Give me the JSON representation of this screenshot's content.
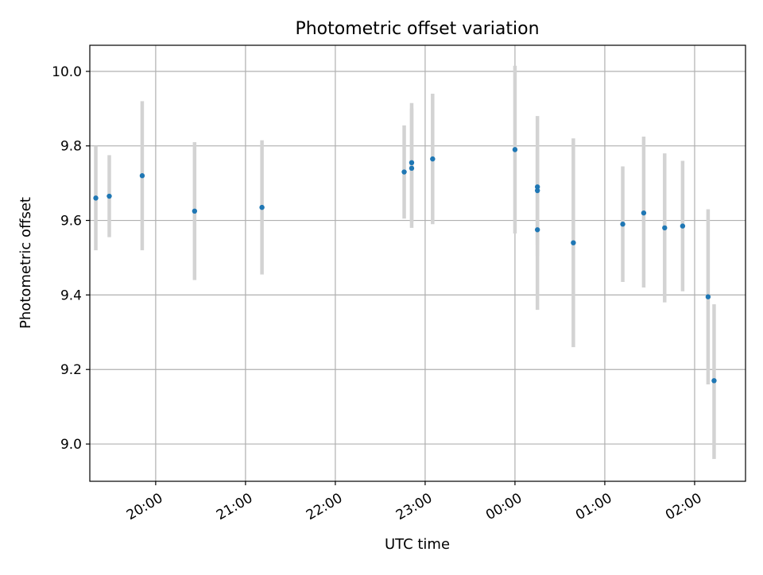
{
  "chart_data": {
    "type": "scatter",
    "title": "Photometric offset variation",
    "xlabel": "UTC time",
    "ylabel": "Photometric offset",
    "x_tick_labels": [
      "20:00",
      "21:00",
      "22:00",
      "23:00",
      "00:00",
      "01:00",
      "02:00"
    ],
    "x_tick_times": [
      "20:00",
      "21:00",
      "22:00",
      "23:00",
      "00:00",
      "01:00",
      "02:00"
    ],
    "y_tick_labels": [
      "9.0",
      "9.2",
      "9.4",
      "9.6",
      "9.8",
      "10.0"
    ],
    "y_tick_values": [
      9.0,
      9.2,
      9.4,
      9.6,
      9.8,
      10.0
    ],
    "xlim": [
      "19:16",
      "02:34"
    ],
    "ylim": [
      8.9,
      10.07
    ],
    "grid": true,
    "series": [
      {
        "marker_color": "#1f77b4",
        "errorbar_color": "#d3d3d3",
        "points": [
          {
            "time": "19:20",
            "y": 9.66,
            "ylow": 9.52,
            "yhigh": 9.8
          },
          {
            "time": "19:29",
            "y": 9.665,
            "ylow": 9.555,
            "yhigh": 9.775
          },
          {
            "time": "19:51",
            "y": 9.72,
            "ylow": 9.52,
            "yhigh": 9.92
          },
          {
            "time": "20:26",
            "y": 9.625,
            "ylow": 9.44,
            "yhigh": 9.81
          },
          {
            "time": "21:11",
            "y": 9.635,
            "ylow": 9.455,
            "yhigh": 9.815
          },
          {
            "time": "22:46",
            "y": 9.73,
            "ylow": 9.605,
            "yhigh": 9.855
          },
          {
            "time": "22:51",
            "y": 9.74,
            "ylow": 9.58,
            "yhigh": 9.9
          },
          {
            "time": "22:51",
            "y": 9.755,
            "ylow": 9.595,
            "yhigh": 9.915
          },
          {
            "time": "23:05",
            "y": 9.765,
            "ylow": 9.59,
            "yhigh": 9.94
          },
          {
            "time": "00:00",
            "y": 9.79,
            "ylow": 9.565,
            "yhigh": 10.015
          },
          {
            "time": "00:15",
            "y": 9.69,
            "ylow": 9.505,
            "yhigh": 9.88
          },
          {
            "time": "00:15",
            "y": 9.68,
            "ylow": 9.535,
            "yhigh": 9.795
          },
          {
            "time": "00:15",
            "y": 9.575,
            "ylow": 9.36,
            "yhigh": 9.79
          },
          {
            "time": "00:39",
            "y": 9.54,
            "ylow": 9.26,
            "yhigh": 9.82
          },
          {
            "time": "01:12",
            "y": 9.59,
            "ylow": 9.435,
            "yhigh": 9.745
          },
          {
            "time": "01:26",
            "y": 9.62,
            "ylow": 9.42,
            "yhigh": 9.825
          },
          {
            "time": "01:40",
            "y": 9.58,
            "ylow": 9.38,
            "yhigh": 9.78
          },
          {
            "time": "01:52",
            "y": 9.585,
            "ylow": 9.41,
            "yhigh": 9.76
          },
          {
            "time": "02:09",
            "y": 9.395,
            "ylow": 9.16,
            "yhigh": 9.63
          },
          {
            "time": "02:13",
            "y": 9.17,
            "ylow": 8.96,
            "yhigh": 9.375
          }
        ]
      }
    ]
  }
}
